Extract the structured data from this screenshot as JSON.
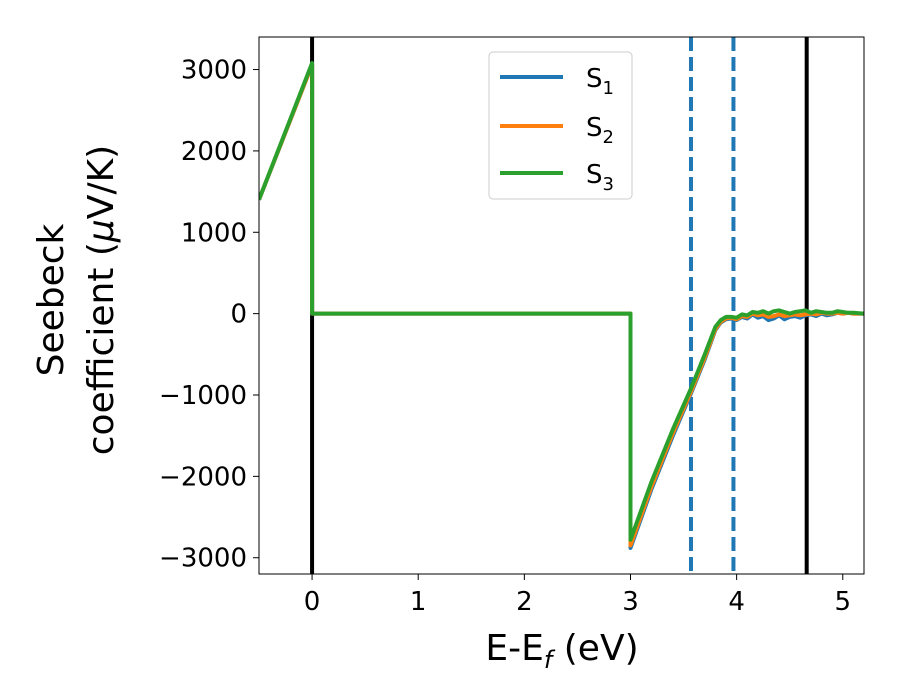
{
  "chart_data": {
    "type": "line",
    "xlabel": {
      "main": "E-E",
      "sub": "f",
      "unit": " (eV)"
    },
    "ylabel": {
      "line1": "Seebeck",
      "line2": "coefficient  (",
      "mu": "μ",
      "unit": "V/K)"
    },
    "xlim": [
      -0.5,
      5.2
    ],
    "ylim": [
      -3200,
      3400
    ],
    "xticks": [
      0,
      1,
      2,
      3,
      4,
      5
    ],
    "xtick_labels": [
      "0",
      "1",
      "2",
      "3",
      "4",
      "5"
    ],
    "yticks": [
      3000,
      2000,
      1000,
      0,
      -1000,
      -2000,
      -3000
    ],
    "ytick_labels": [
      "3000",
      "2000",
      "1000",
      "0",
      "−1000",
      "−2000",
      "−3000"
    ],
    "grid": false,
    "legend_position": "upper-center",
    "vlines": [
      {
        "x": 0.0,
        "style": "solid",
        "color": "#000000"
      },
      {
        "x": 4.66,
        "style": "solid",
        "color": "#000000"
      },
      {
        "x": 3.57,
        "style": "dashed",
        "color": "#1f77b4"
      },
      {
        "x": 3.97,
        "style": "dashed",
        "color": "#1f77b4"
      }
    ],
    "series": [
      {
        "name": "S",
        "sub": "1",
        "color": "#1f77b4",
        "x": [
          -0.5,
          0.0,
          0.0,
          3.0,
          3.0,
          3.2,
          3.4,
          3.57,
          3.7,
          3.8,
          3.85,
          3.9,
          3.95,
          4.0,
          4.05,
          4.1,
          4.15,
          4.2,
          4.25,
          4.3,
          4.35,
          4.4,
          4.45,
          4.5,
          4.55,
          4.6,
          4.65,
          4.7,
          4.75,
          4.8,
          4.85,
          4.9,
          4.95,
          5.0,
          5.05,
          5.1,
          5.2
        ],
        "y": [
          1400,
          3060,
          0,
          0,
          -2880,
          -2150,
          -1500,
          -980,
          -560,
          -200,
          -110,
          -70,
          -60,
          -80,
          -40,
          -60,
          -10,
          -50,
          -30,
          -80,
          -60,
          -20,
          -70,
          -40,
          -30,
          -50,
          -20,
          -10,
          -30,
          0,
          -20,
          -10,
          10,
          0,
          10,
          0,
          0
        ]
      },
      {
        "name": "S",
        "sub": "2",
        "color": "#ff7f0e",
        "x": [
          -0.5,
          0.0,
          0.0,
          3.0,
          3.0,
          3.2,
          3.4,
          3.57,
          3.7,
          3.8,
          3.85,
          3.9,
          3.95,
          4.0,
          4.05,
          4.1,
          4.15,
          4.2,
          4.25,
          4.3,
          4.35,
          4.4,
          4.45,
          4.5,
          4.55,
          4.6,
          4.65,
          4.7,
          4.75,
          4.8,
          4.85,
          4.9,
          4.95,
          5.0,
          5.05,
          5.1,
          5.2
        ],
        "y": [
          1400,
          3060,
          0,
          0,
          -2850,
          -2120,
          -1470,
          -960,
          -540,
          -190,
          -100,
          -60,
          -50,
          -70,
          -30,
          -40,
          0,
          -20,
          -10,
          -40,
          -30,
          -10,
          -30,
          -20,
          -10,
          -20,
          -10,
          0,
          -10,
          10,
          0,
          0,
          10,
          0,
          10,
          0,
          0
        ]
      },
      {
        "name": "S",
        "sub": "3",
        "color": "#2ca02c",
        "x": [
          -0.5,
          0.0,
          0.0,
          3.0,
          3.0,
          3.2,
          3.4,
          3.57,
          3.7,
          3.8,
          3.85,
          3.9,
          3.95,
          4.0,
          4.05,
          4.1,
          4.15,
          4.2,
          4.25,
          4.3,
          4.35,
          4.4,
          4.45,
          4.5,
          4.55,
          4.6,
          4.65,
          4.7,
          4.75,
          4.8,
          4.85,
          4.9,
          4.95,
          5.0,
          5.05,
          5.1,
          5.2
        ],
        "y": [
          1400,
          3080,
          0,
          0,
          -2780,
          -2060,
          -1420,
          -920,
          -500,
          -160,
          -80,
          -40,
          -40,
          -50,
          -10,
          -20,
          20,
          10,
          30,
          0,
          30,
          40,
          20,
          0,
          20,
          30,
          40,
          10,
          30,
          20,
          10,
          10,
          30,
          20,
          10,
          10,
          0
        ]
      }
    ]
  }
}
